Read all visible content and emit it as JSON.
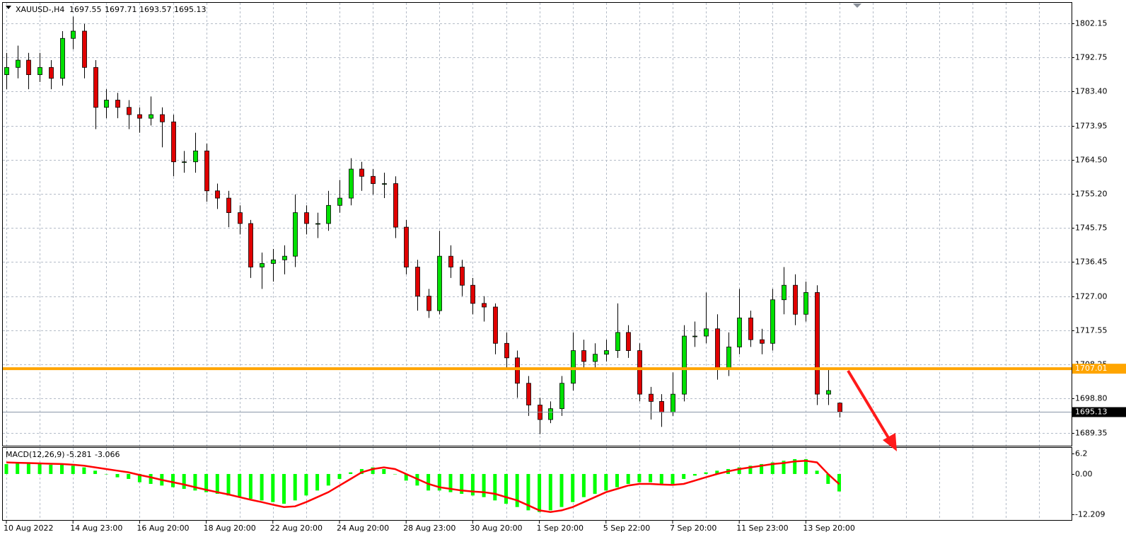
{
  "chart_data": [
    {
      "type": "candlestick",
      "title": "XAUUSD-,H4",
      "categories": [
        "10 Aug 2022",
        null,
        null,
        null,
        null,
        null,
        "14 Aug 23:00",
        null,
        null,
        null,
        null,
        null,
        "16 Aug 20:00",
        null,
        null,
        null,
        null,
        null,
        "18 Aug 20:00",
        null,
        null,
        null,
        null,
        null,
        "22 Aug 20:00",
        null,
        null,
        null,
        null,
        null,
        "24 Aug 20:00",
        null,
        null,
        null,
        null,
        null,
        "28 Aug 23:00",
        null,
        null,
        null,
        null,
        null,
        "30 Aug 20:00",
        null,
        null,
        null,
        null,
        null,
        "1 Sep 20:00",
        null,
        null,
        null,
        null,
        null,
        "5 Sep 22:00",
        null,
        null,
        null,
        null,
        null,
        "7 Sep 20:00",
        null,
        null,
        null,
        null,
        null,
        "11 Sep 23:00",
        null,
        null,
        null,
        null,
        null,
        "13 Sep 20:00",
        null,
        null,
        null
      ],
      "open": [
        1788,
        1790,
        1792,
        1788,
        1790,
        1787,
        1798,
        1800,
        1790,
        1779,
        1781,
        1779,
        1777,
        1776,
        1777,
        1775,
        1764,
        1764,
        1767,
        1756,
        1754,
        1750,
        1747,
        1735,
        1736,
        1737,
        1738,
        1750,
        1747,
        1747,
        1752,
        1754,
        1762,
        1760,
        1758,
        1758,
        1746,
        1735,
        1727,
        1723,
        1738,
        1735,
        1730,
        1725,
        1724,
        1714,
        1710,
        1703,
        1697,
        1693,
        1696,
        1703,
        1712,
        1709,
        1711,
        1712,
        1717,
        1712,
        1700,
        1698,
        1695,
        1700,
        1716,
        1716,
        1718,
        1707,
        1713,
        1721,
        1715,
        1714,
        1726,
        1730,
        1722,
        1728,
        1700,
        1697.55
      ],
      "high": [
        1794,
        1796,
        1794,
        1794,
        1792,
        1800,
        1804,
        1802,
        1792,
        1784,
        1783,
        1781,
        1779,
        1782,
        1779,
        1777,
        1767,
        1772,
        1769,
        1758,
        1756,
        1752,
        1748,
        1739,
        1740,
        1741,
        1755,
        1752,
        1750,
        1756,
        1759,
        1765,
        1764,
        1762,
        1761,
        1760,
        1748,
        1737,
        1729,
        1745,
        1741,
        1737,
        1732,
        1727,
        1725,
        1717,
        1712,
        1705,
        1699,
        1698,
        1705,
        1717,
        1715,
        1714,
        1715,
        1725,
        1719,
        1714,
        1702,
        1700,
        1706,
        1719,
        1720,
        1728,
        1722,
        1717,
        1729,
        1723,
        1718,
        1729,
        1735,
        1733,
        1731,
        1730,
        1707,
        1697.71
      ],
      "low": [
        1784,
        1787,
        1784,
        1786,
        1784,
        1785,
        1795,
        1787,
        1773,
        1776,
        1776,
        1773,
        1772,
        1774,
        1768,
        1760,
        1761,
        1761,
        1753,
        1751,
        1746,
        1744,
        1732,
        1729,
        1731,
        1733,
        1735,
        1744,
        1743,
        1745,
        1750,
        1752,
        1756,
        1755,
        1754,
        1743,
        1733,
        1723,
        1721,
        1722,
        1732,
        1727,
        1722,
        1720,
        1711,
        1707,
        1699,
        1694,
        1689,
        1692,
        1694,
        1701,
        1707,
        1707,
        1709,
        1710,
        1710,
        1698,
        1693,
        1691,
        1694,
        1698,
        1713,
        1714,
        1704,
        1705,
        1711,
        1713,
        1711,
        1712,
        1722,
        1719,
        1720,
        1697,
        1697,
        1693.57
      ],
      "close": [
        1790,
        1792,
        1788,
        1790,
        1787,
        1798,
        1800,
        1790,
        1779,
        1781,
        1779,
        1777,
        1776,
        1777,
        1775,
        1764,
        1764,
        1767,
        1756,
        1754,
        1750,
        1747,
        1735,
        1736,
        1737,
        1738,
        1750,
        1747,
        1747,
        1752,
        1754,
        1762,
        1760,
        1758,
        1758,
        1746,
        1735,
        1727,
        1723,
        1738,
        1735,
        1730,
        1725,
        1724,
        1714,
        1710,
        1703,
        1697,
        1693,
        1696,
        1703,
        1712,
        1709,
        1711,
        1712,
        1717,
        1712,
        1700,
        1698,
        1695,
        1700,
        1716,
        1716,
        1718,
        1707,
        1713,
        1721,
        1715,
        1714,
        1726,
        1730,
        1722,
        1728,
        1700,
        1701,
        1695.13
      ],
      "up_color": "#00e000",
      "down_color": "#e00000",
      "ylim": [
        1685.8,
        1807.6
      ],
      "yticks": [
        1802.15,
        1792.75,
        {
          "value": 1783.4,
          "label": "1783.40"
        },
        1773.95,
        {
          "value": 1764.5,
          "label": "1764.50"
        },
        {
          "value": 1755.2,
          "label": "1755.20"
        },
        1745.75,
        1736.45,
        {
          "value": 1727,
          "label": "1727.00"
        },
        1717.55,
        1708.25,
        {
          "value": 1698.8,
          "label": "1698.80"
        },
        1689.35
      ],
      "grid": true,
      "hlines": [
        {
          "value": 1707.01,
          "color": "#ffa500"
        }
      ]
    },
    {
      "type": "macd",
      "title": "MACD(12,26,9)",
      "histogram": {
        "color": "#00ff00",
        "values": [
          3,
          3.5,
          3.2,
          3,
          2.8,
          3,
          2.5,
          2,
          1,
          0,
          -1,
          -1.5,
          -2.5,
          -3,
          -3.5,
          -4,
          -4.5,
          -5,
          -5.5,
          -6,
          -6.5,
          -7,
          -7.5,
          -8,
          -8.5,
          -9,
          -8,
          -6.5,
          -5,
          -3.5,
          -1.5,
          0.5,
          1.5,
          2,
          1.5,
          0,
          -2,
          -3.5,
          -5,
          -5,
          -5.5,
          -6,
          -6.5,
          -7,
          -8,
          -9,
          -10,
          -11,
          -11.5,
          -11,
          -10,
          -8.5,
          -7,
          -6,
          -5,
          -4,
          -3,
          -2.5,
          -2.5,
          -3,
          -3,
          -1.5,
          -0.5,
          0.5,
          1,
          1.5,
          2,
          2.5,
          3,
          3.5,
          4,
          4.5,
          4.5,
          1,
          -3,
          -5.281
        ]
      },
      "signal": {
        "color": "#ff0000",
        "values": [
          3.5,
          3.4,
          3.3,
          3.2,
          3.1,
          3,
          2.8,
          2.5,
          2,
          1.5,
          1,
          0.5,
          -0.3,
          -1,
          -1.8,
          -2.5,
          -3.2,
          -4,
          -4.8,
          -5.5,
          -6.2,
          -7,
          -7.8,
          -8.5,
          -9.3,
          -10,
          -9.8,
          -8.5,
          -7,
          -5.5,
          -3.5,
          -1.5,
          0.5,
          1.5,
          2,
          1.5,
          0,
          -1.5,
          -3,
          -4,
          -4.5,
          -5,
          -5.3,
          -5.5,
          -6,
          -7,
          -8,
          -9.5,
          -11,
          -11.5,
          -11,
          -10,
          -8.5,
          -7,
          -5.5,
          -4.5,
          -3.5,
          -3,
          -3,
          -3.2,
          -3.3,
          -3,
          -2,
          -1,
          0,
          0.8,
          1.5,
          2,
          2.5,
          3,
          3.3,
          3.8,
          4,
          3.5,
          0,
          -3.066
        ]
      },
      "ylim": [
        -12.209,
        6.2
      ],
      "yticks": [
        6.2,
        {
          "value": 0,
          "label": "0.00"
        },
        -12.209
      ]
    }
  ]
}
